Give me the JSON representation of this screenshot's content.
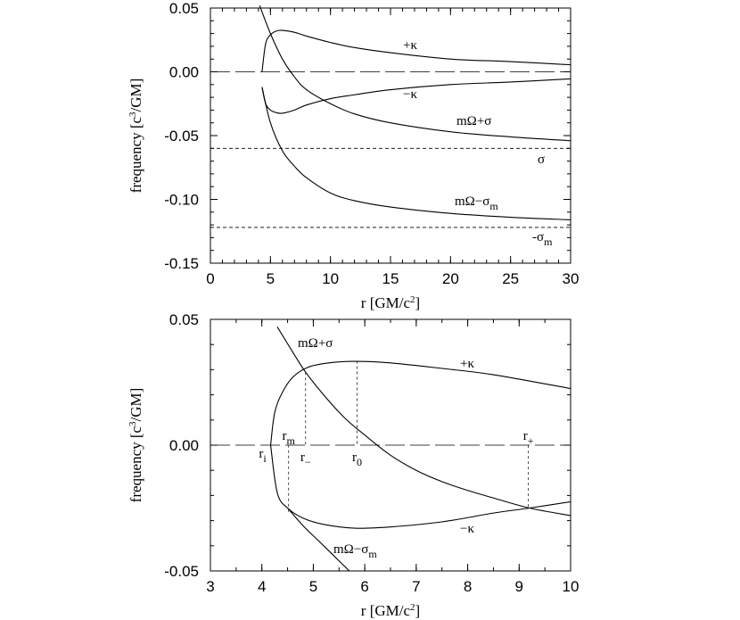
{
  "chart_data": [
    {
      "type": "line",
      "xlabel": "r [GM/c²]",
      "ylabel": "frequency [c³/GM]",
      "xlim": [
        0,
        30
      ],
      "ylim": [
        -0.15,
        0.05
      ],
      "xticks": [
        "0",
        "5",
        "10",
        "15",
        "20",
        "25",
        "30"
      ],
      "yticks": [
        "0.05",
        "0.00",
        "-0.05",
        "-0.10",
        "-0.15"
      ],
      "series": [
        {
          "name": "+κ",
          "x": [
            4.3,
            4.6,
            5.0,
            5.5,
            6.0,
            7.0,
            8.0,
            10,
            12,
            15,
            20,
            25,
            30
          ],
          "values": [
            0.0,
            0.022,
            0.029,
            0.032,
            0.0325,
            0.031,
            0.028,
            0.023,
            0.019,
            0.015,
            0.01,
            0.008,
            0.0055
          ]
        },
        {
          "name": "−κ",
          "x": [
            4.3,
            4.6,
            5.0,
            5.5,
            6.0,
            7.0,
            8.0,
            10,
            12,
            15,
            20,
            25,
            30
          ],
          "values": [
            -0.012,
            -0.025,
            -0.03,
            -0.032,
            -0.0325,
            -0.03,
            -0.026,
            -0.021,
            -0.018,
            -0.014,
            -0.01,
            -0.008,
            -0.0055
          ]
        },
        {
          "name": "mΩ+σ",
          "x": [
            4.1,
            5.0,
            6.0,
            7.0,
            8.0,
            10,
            12,
            15,
            20,
            25,
            30
          ],
          "values": [
            0.052,
            0.03,
            0.01,
            -0.004,
            -0.014,
            -0.025,
            -0.033,
            -0.04,
            -0.047,
            -0.051,
            -0.054
          ]
        },
        {
          "name": "mΩ−σm",
          "x": [
            4.3,
            5.0,
            6.0,
            7.0,
            8.0,
            10,
            12,
            15,
            20,
            25,
            30
          ],
          "values": [
            -0.012,
            -0.04,
            -0.062,
            -0.074,
            -0.083,
            -0.095,
            -0.101,
            -0.106,
            -0.111,
            -0.114,
            -0.116
          ]
        },
        {
          "name": "σ",
          "x": [
            0,
            30
          ],
          "values": [
            -0.06,
            -0.06
          ]
        },
        {
          "name": "-σm",
          "x": [
            0,
            30
          ],
          "values": [
            -0.122,
            -0.122
          ]
        },
        {
          "name": "zero",
          "x": [
            0,
            30
          ],
          "values": [
            0,
            0
          ]
        }
      ],
      "labels": {
        "kp": {
          "t": "+κ"
        },
        "km": {
          "t": "−κ"
        },
        "mos": {
          "a": "mΩ+σ"
        },
        "momm": {
          "a": "mΩ−σ",
          "sub": "m"
        },
        "sig": {
          "t": "σ"
        },
        "sigm": {
          "a": "-σ",
          "sub": "m"
        }
      }
    },
    {
      "type": "line",
      "xlabel": "r [GM/c²]",
      "ylabel": "frequency [c³/GM]",
      "xlim": [
        3,
        10
      ],
      "ylim": [
        -0.05,
        0.05
      ],
      "xticks": [
        "3",
        "4",
        "5",
        "6",
        "7",
        "8",
        "9",
        "10"
      ],
      "yticks": [
        "0.05",
        "0.00",
        "-0.05"
      ],
      "series": [
        {
          "name": "+κ",
          "x": [
            4.17,
            4.25,
            4.4,
            4.6,
            4.9,
            5.3,
            5.8,
            6.5,
            7.5,
            8.5,
            10
          ],
          "values": [
            0.0,
            0.013,
            0.021,
            0.027,
            0.031,
            0.0327,
            0.0333,
            0.0327,
            0.0305,
            0.028,
            0.0225
          ]
        },
        {
          "name": "−κ",
          "x": [
            4.17,
            4.3,
            4.5,
            4.8,
            5.2,
            5.8,
            6.5,
            7.5,
            8.5,
            9.2,
            10
          ],
          "values": [
            0.0,
            -0.019,
            -0.025,
            -0.029,
            -0.0315,
            -0.033,
            -0.0325,
            -0.0305,
            -0.027,
            -0.025,
            -0.0225
          ]
        },
        {
          "name": "mΩ+σ",
          "x": [
            4.3,
            4.6,
            4.85,
            5.2,
            5.6,
            6.0,
            6.5,
            7.0,
            7.5,
            8.0,
            8.5,
            9.2,
            10
          ],
          "values": [
            0.047,
            0.037,
            0.029,
            0.02,
            0.011,
            0.004,
            -0.004,
            -0.01,
            -0.0145,
            -0.018,
            -0.021,
            -0.025,
            -0.028
          ]
        },
        {
          "name": "mΩ−σm",
          "x": [
            4.5,
            4.8,
            5.1,
            5.4,
            5.7
          ],
          "values": [
            -0.025,
            -0.032,
            -0.038,
            -0.044,
            -0.05
          ]
        },
        {
          "name": "zero",
          "x": [
            3,
            10
          ],
          "values": [
            0,
            0
          ]
        }
      ],
      "markers": [
        {
          "label": "r",
          "sub": "i",
          "x": 4.05,
          "y": 0.0
        },
        {
          "label": "r",
          "sub": "m",
          "x": 4.52,
          "y": -0.0265
        },
        {
          "label": "r",
          "sub": "−",
          "x": 4.85,
          "y": 0.029
        },
        {
          "label": "r",
          "sub": "0",
          "x": 5.85,
          "y": 0.0335
        },
        {
          "label": "r",
          "sub": "+",
          "x": 9.18,
          "y": -0.0245
        }
      ],
      "labels": {
        "mos": {
          "a": "mΩ+σ"
        },
        "kp": {
          "t": "+κ"
        },
        "km": {
          "t": "−κ"
        },
        "momm": {
          "a": "mΩ−σ",
          "sub": "m"
        }
      }
    }
  ]
}
